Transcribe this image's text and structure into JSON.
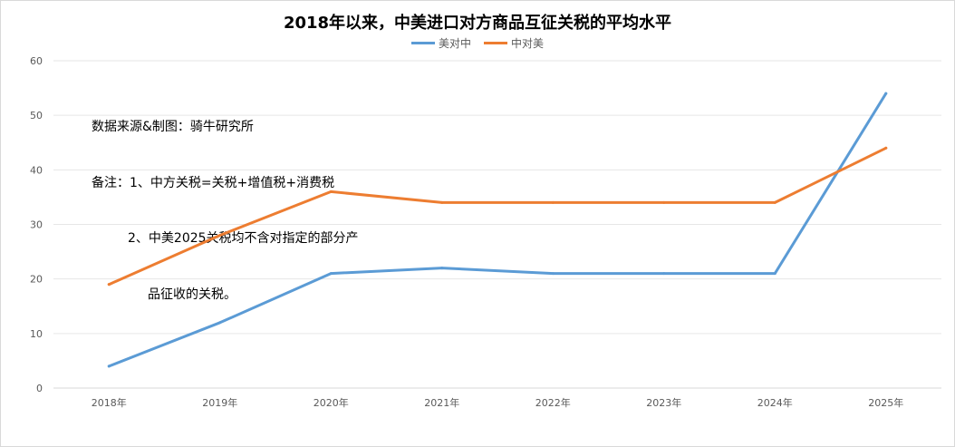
{
  "chart_data": {
    "type": "line",
    "title": "2018年以来，中美进口对方商品互征关税的平均水平",
    "categories": [
      "2018年",
      "2019年",
      "2020年",
      "2021年",
      "2022年",
      "2023年",
      "2024年",
      "2025年"
    ],
    "series": [
      {
        "name": "美对中",
        "color": "#5B9BD5",
        "values": [
          4,
          12,
          21,
          22,
          21,
          21,
          21,
          54
        ]
      },
      {
        "name": "中对美",
        "color": "#ED7D31",
        "values": [
          19,
          28,
          36,
          34,
          34,
          34,
          34,
          44
        ]
      }
    ],
    "ylim": [
      0,
      60
    ],
    "yticks": [
      0,
      10,
      20,
      30,
      40,
      50,
      60
    ],
    "grid": true,
    "legend_position": "top-center",
    "annotations": [
      "数据来源&制图：骑牛研究所",
      "备注：1、中方关税=关税+增值税+消费税",
      "2、中美2025关税均不含对指定的部分产",
      "品征收的关税。"
    ]
  }
}
